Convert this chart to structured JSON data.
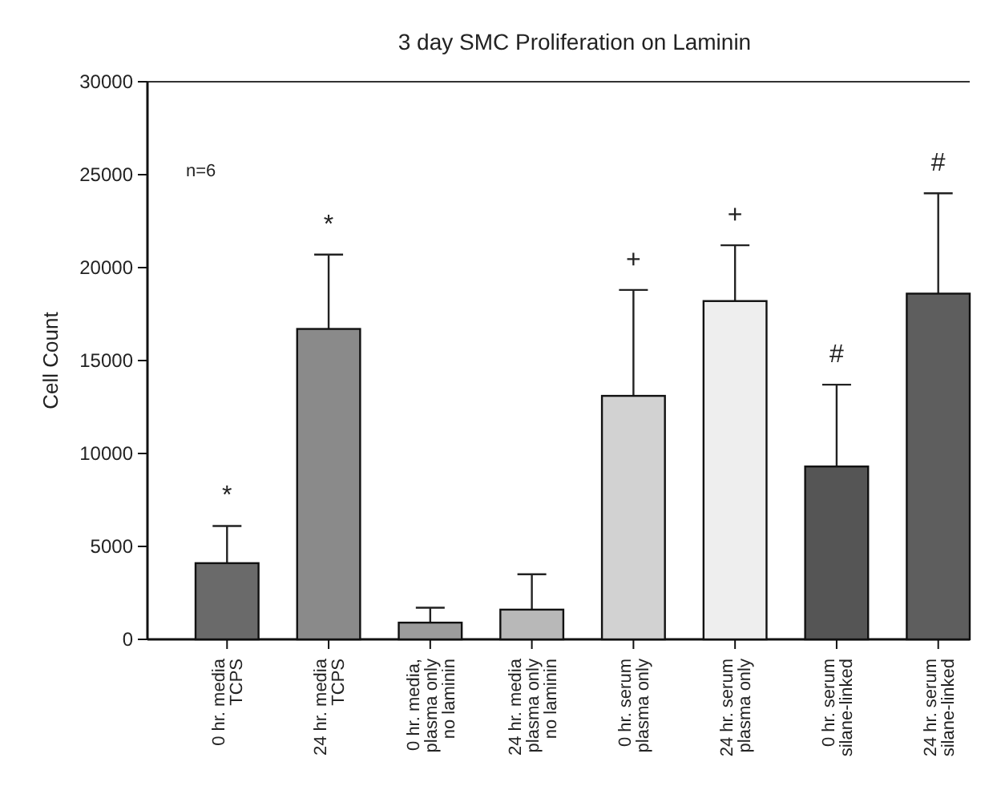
{
  "chart_data": {
    "type": "bar",
    "title": "3 day SMC Proliferation on Laminin",
    "ylabel": "Cell Count",
    "categories": [
      "0 hr. media\nTCPS",
      "24 hr. media\nTCPS",
      "0 hr. media,\nplasma only\nno laminin",
      "24 hr. media\nplasma only\nno laminin",
      "0 hr. serum\nplasma only",
      "24 hr. serum\nplasma only",
      "0 hr. serum\nsilane-linked",
      "24 hr. serum\nsilane-linked"
    ],
    "values": [
      4100,
      16700,
      900,
      1600,
      13100,
      18200,
      9300,
      18600
    ],
    "errors": [
      [
        4100,
        6100
      ],
      [
        16700,
        20700
      ],
      [
        900,
        1700
      ],
      [
        1600,
        3500
      ],
      [
        13100,
        18800
      ],
      [
        18200,
        21200
      ],
      [
        9300,
        13700
      ],
      [
        18600,
        24000
      ]
    ],
    "colors": [
      "#6a6a6a",
      "#8a8a8a",
      "#9c9c9c",
      "#b8b8b8",
      "#d2d2d2",
      "#eeeeee",
      "#555555",
      "#5e5e5e"
    ],
    "ylim": [
      0,
      30000
    ],
    "yticks": [
      0,
      5000,
      10000,
      15000,
      20000,
      25000,
      30000
    ],
    "grid": false,
    "annotations": [
      "n=6",
      {
        "text": "*",
        "x": "0 hr. media\nTCPS",
        "y": 6100
      },
      {
        "text": "*",
        "x": "24 hr. media\nTCPS",
        "y": 20700
      },
      {
        "text": "+",
        "x": "0 hr. serum\nplasma only",
        "y": 18800
      },
      {
        "text": "+",
        "x": "24 hr. serum\nplasma only",
        "y": 21200
      },
      {
        "text": "#",
        "x": "0 hr. serum\nsilane-linked",
        "y": 13700
      },
      {
        "text": "#",
        "x": "24 hr. serum\nsilane-linked",
        "y": 24000
      }
    ]
  }
}
